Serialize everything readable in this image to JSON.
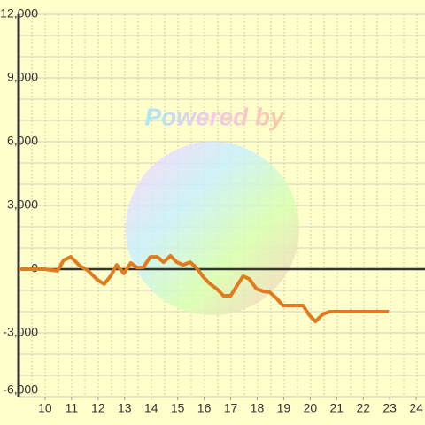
{
  "chart_data": {
    "type": "line",
    "watermark": "Powered by",
    "x": [
      9,
      9.97,
      10.47,
      10.7,
      10.97,
      11.3,
      11.63,
      11.97,
      12.23,
      12.47,
      12.7,
      12.97,
      13.23,
      13.47,
      13.7,
      13.97,
      14.23,
      14.47,
      14.73,
      14.97,
      15.2,
      15.47,
      15.7,
      15.97,
      16.2,
      16.47,
      16.73,
      17,
      17.23,
      17.47,
      17.7,
      17.97,
      18.23,
      18.47,
      18.73,
      18.97,
      19.3,
      19.73,
      19.97,
      20.2,
      20.47,
      20.73,
      21.3,
      22.97
    ],
    "series": [
      {
        "color": "#e07b20",
        "values": [
          0,
          0,
          -80,
          420,
          580,
          170,
          -80,
          -500,
          -700,
          -330,
          200,
          -200,
          290,
          80,
          80,
          580,
          580,
          330,
          625,
          330,
          200,
          330,
          80,
          -375,
          -670,
          -920,
          -1250,
          -1250,
          -790,
          -330,
          -460,
          -920,
          -1040,
          -1080,
          -1375,
          -1710,
          -1710,
          -1710,
          -2170,
          -2460,
          -2125,
          -2000,
          -2000,
          -2000
        ]
      }
    ],
    "xlim": [
      9,
      24.33
    ],
    "xticks": [
      10,
      11,
      12,
      13,
      14,
      15,
      16,
      17,
      18,
      19,
      20,
      21,
      22,
      23,
      24
    ],
    "ylim": [
      -6000,
      12000
    ],
    "yticks": [
      {
        "value": -6000,
        "label": "-6,000"
      },
      {
        "value": -3000,
        "label": "-3,000"
      },
      0,
      {
        "value": 3000,
        "label": "3,000"
      },
      {
        "value": 6000,
        "label": "6,000"
      },
      {
        "value": 9000,
        "label": "9,000"
      },
      {
        "value": 12000,
        "label": "12,000"
      }
    ],
    "grid": true
  }
}
